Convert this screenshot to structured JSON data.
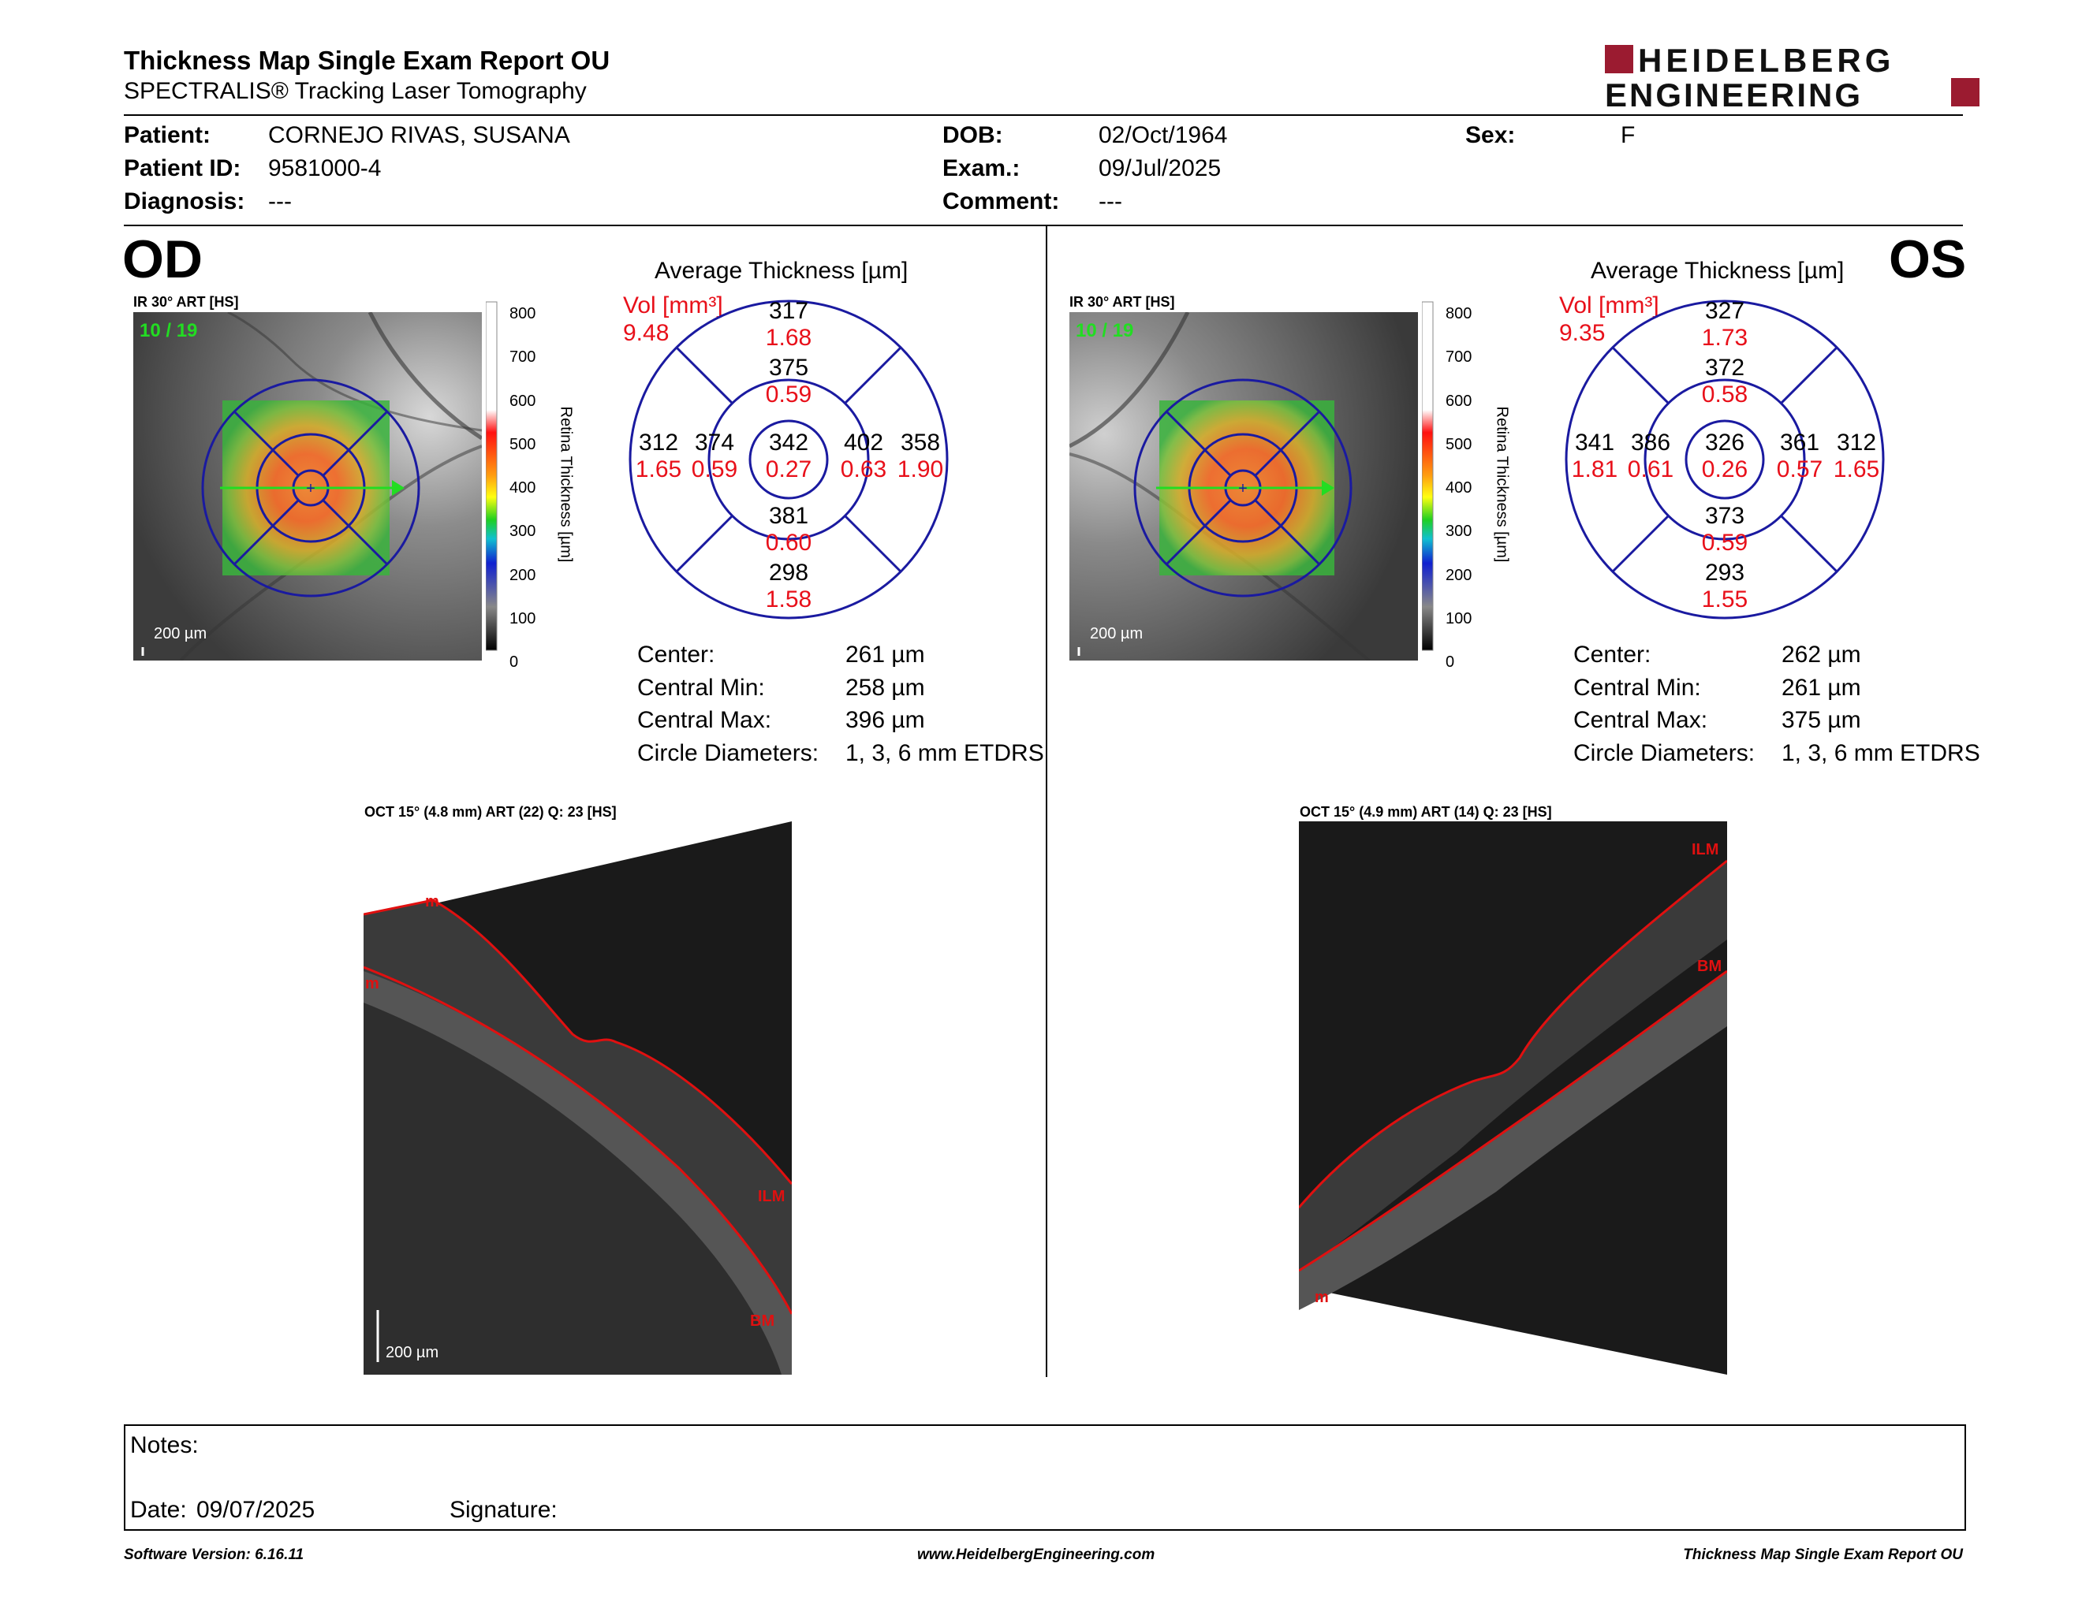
{
  "report": {
    "title": "Thickness Map Single Exam Report OU",
    "subtitle": "SPECTRALIS® Tracking Laser Tomography",
    "logo_top": "HEIDELBERG",
    "logo_bottom": "ENGINEERING",
    "brand_color": "#9b1b30"
  },
  "patient": {
    "patient_label": "Patient:",
    "patient_value": "CORNEJO RIVAS, SUSANA",
    "id_label": "Patient ID:",
    "id_value": "9581000-4",
    "diag_label": "Diagnosis:",
    "diag_value": "---",
    "dob_label": "DOB:",
    "dob_value": "02/Oct/1964",
    "exam_label": "Exam.:",
    "exam_value": "09/Jul/2025",
    "comment_label": "Comment:",
    "comment_value": "---",
    "sex_label": "Sex:",
    "sex_value": "F"
  },
  "od": {
    "eye": "OD",
    "ir_label": "IR 30° ART [HS]",
    "frames": "10 / 19",
    "scale": "200 µm",
    "colorbar": {
      "ticks": [
        "800",
        "700",
        "600",
        "500",
        "400",
        "300",
        "200",
        "100",
        "0"
      ],
      "title": "Retina Thickness [µm]"
    },
    "etdrs_title": "Average Thickness [µm]",
    "vol_label": "Vol [mm³]",
    "vol_total": "9.48",
    "sectors": {
      "center": {
        "t": "342",
        "v": "0.27"
      },
      "inner_top": {
        "t": "375",
        "v": "0.59"
      },
      "inner_bottom": {
        "t": "381",
        "v": "0.60"
      },
      "inner_left": {
        "t": "374",
        "v": "0.59"
      },
      "inner_right": {
        "t": "402",
        "v": "0.63"
      },
      "outer_top": {
        "t": "317",
        "v": "1.68"
      },
      "outer_bottom": {
        "t": "298",
        "v": "1.58"
      },
      "outer_left": {
        "t": "312",
        "v": "1.65"
      },
      "outer_right": {
        "t": "358",
        "v": "1.90"
      }
    },
    "stats": {
      "center_label": "Center:",
      "center_value": "261 µm",
      "min_label": "Central Min:",
      "min_value": "258 µm",
      "max_label": "Central Max:",
      "max_value": "396 µm",
      "diam_label": "Circle Diameters:",
      "diam_value": "1, 3, 6 mm ETDRS"
    },
    "oct_label": "OCT 15° (4.8 mm) ART (22) Q: 23 [HS]",
    "oct_scale": "200 µm",
    "oct_marks": {
      "m1": "m",
      "m2": "m",
      "ilm": "ILM",
      "bm": "BM"
    }
  },
  "os": {
    "eye": "OS",
    "ir_label": "IR 30° ART [HS]",
    "frames": "10 / 19",
    "scale": "200 µm",
    "colorbar": {
      "ticks": [
        "800",
        "700",
        "600",
        "500",
        "400",
        "300",
        "200",
        "100",
        "0"
      ],
      "title": "Retina Thickness [µm]"
    },
    "etdrs_title": "Average Thickness [µm]",
    "vol_label": "Vol [mm³]",
    "vol_total": "9.35",
    "sectors": {
      "center": {
        "t": "326",
        "v": "0.26"
      },
      "inner_top": {
        "t": "372",
        "v": "0.58"
      },
      "inner_bottom": {
        "t": "373",
        "v": "0.59"
      },
      "inner_left": {
        "t": "386",
        "v": "0.61"
      },
      "inner_right": {
        "t": "361",
        "v": "0.57"
      },
      "outer_top": {
        "t": "327",
        "v": "1.73"
      },
      "outer_bottom": {
        "t": "293",
        "v": "1.55"
      },
      "outer_left": {
        "t": "341",
        "v": "1.81"
      },
      "outer_right": {
        "t": "312",
        "v": "1.65"
      }
    },
    "stats": {
      "center_label": "Center:",
      "center_value": "262 µm",
      "min_label": "Central Min:",
      "min_value": "261 µm",
      "max_label": "Central Max:",
      "max_value": "375 µm",
      "diam_label": "Circle Diameters:",
      "diam_value": "1, 3, 6 mm ETDRS"
    },
    "oct_label": "OCT 15° (4.9 mm) ART (14) Q: 23 [HS]",
    "oct_scale": "200 µm",
    "oct_marks": {
      "ilm": "ILM",
      "bm": "BM",
      "m": "m"
    }
  },
  "notes": {
    "notes_label": "Notes:",
    "date_label": "Date:",
    "date_value": "09/07/2025",
    "signature_label": "Signature:"
  },
  "footer": {
    "left": "Software Version: 6.16.11",
    "center": "www.HeidelbergEngineering.com",
    "right": "Thickness Map Single Exam Report OU"
  },
  "colors": {
    "etdrs_ring": "#1a1aa0",
    "volume_red": "#e8101a",
    "frame_green": "#22dd22",
    "segmentation_red": "#e01010"
  }
}
